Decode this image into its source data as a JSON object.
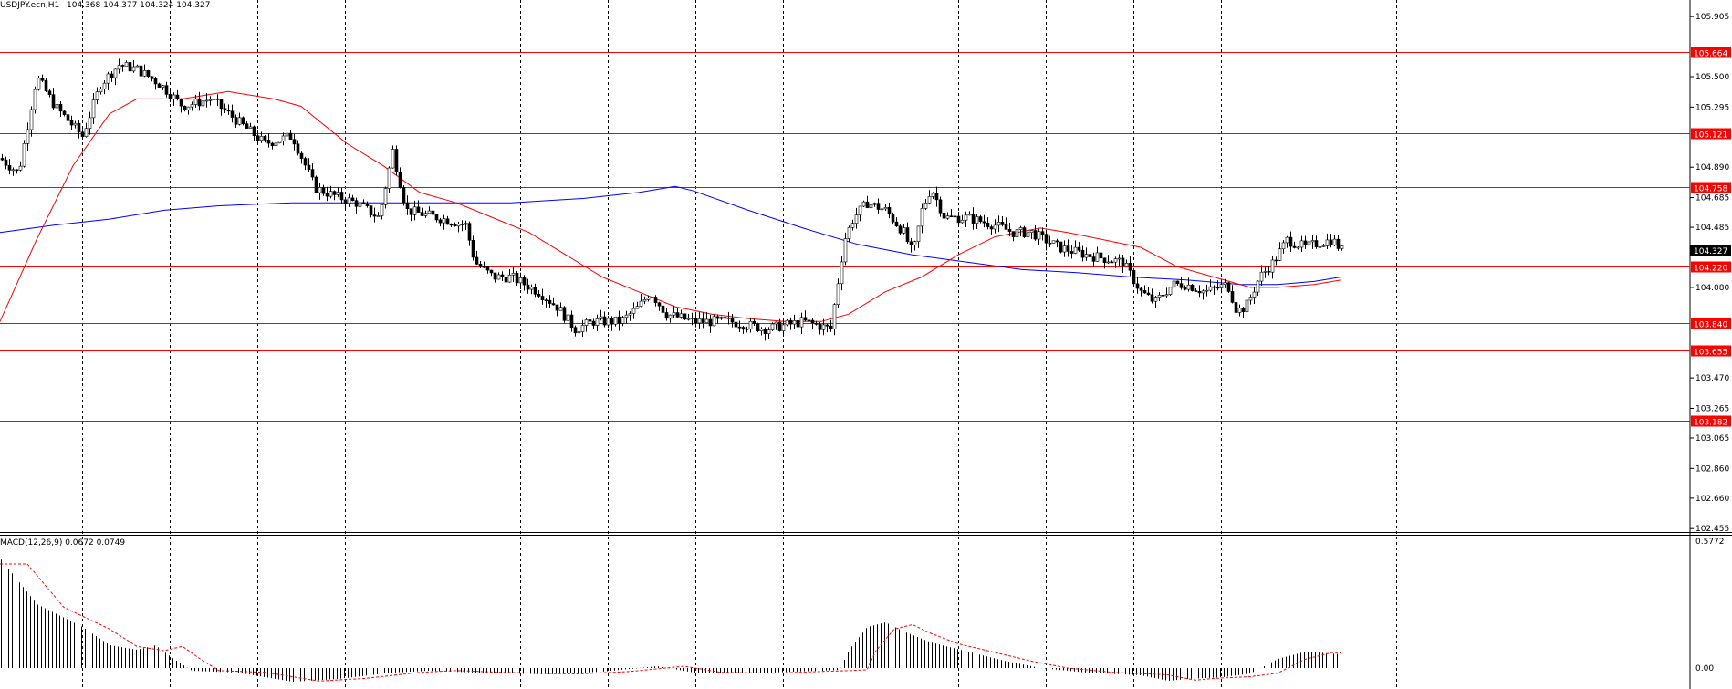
{
  "header": {
    "symbol_timeframe": "USDJPY.ecn,H1",
    "ohlc": "104.368 104.377 104.324 104.327"
  },
  "price_axis": {
    "labels": [
      "105.905",
      "105.500",
      "105.295",
      "104.890",
      "104.685",
      "104.485",
      "104.080",
      "103.470",
      "103.265",
      "103.065",
      "102.860",
      "102.660",
      "102.455"
    ]
  },
  "horizontal_levels": [
    {
      "label": "105.664",
      "value": 105.664
    },
    {
      "label": "105.121",
      "value": 105.121
    },
    {
      "label": "104.758",
      "value": 104.758
    },
    {
      "label": "104.220",
      "value": 104.22
    },
    {
      "label": "103.840",
      "value": 103.84
    },
    {
      "label": "103.655",
      "value": 103.655
    },
    {
      "label": "103.182",
      "value": 103.182
    }
  ],
  "current_price": {
    "label": "104.327",
    "value": 104.327
  },
  "macd": {
    "title": "MACD(12,26,9) 0.0672 0.0749",
    "scale_top": "0.5772",
    "scale_zero": "0.00"
  },
  "colors": {
    "level_line": "#ff0000",
    "ma_fast": "#ff0000",
    "ma_slow": "#0000ff",
    "candle": "#000000",
    "grid": "#000000"
  }
}
